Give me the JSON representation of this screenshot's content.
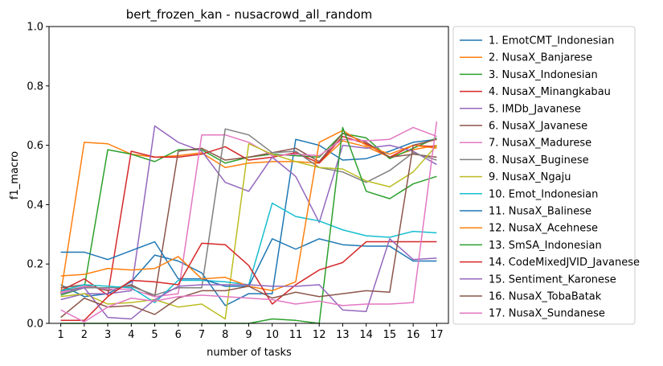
{
  "chart_data": {
    "type": "line",
    "title": "bert_frozen_kan - nusacrowd_all_random",
    "xlabel": "number of tasks",
    "ylabel": "f1_macro",
    "xlim": [
      0.5,
      17.5
    ],
    "ylim": [
      0,
      1
    ],
    "x": [
      1,
      2,
      3,
      4,
      5,
      6,
      7,
      8,
      9,
      10,
      11,
      12,
      13,
      14,
      15,
      16,
      17
    ],
    "x_ticks": [
      "1",
      "2",
      "3",
      "4",
      "5",
      "6",
      "7",
      "8",
      "9",
      "10",
      "11",
      "12",
      "13",
      "14",
      "15",
      "16",
      "17"
    ],
    "y_ticks": [
      "0.0",
      "0.2",
      "0.4",
      "0.6",
      "0.8",
      "1.0"
    ],
    "grid": false,
    "legend_position": "outside-right",
    "series": [
      {
        "name": "1. EmotCMT_Indonesian",
        "color": "#1f77b4",
        "values": [
          0.13,
          0.09,
          0.1,
          0.14,
          0.23,
          0.21,
          0.17,
          0.06,
          0.1,
          0.1,
          0.62,
          0.6,
          0.55,
          0.555,
          0.58,
          0.61,
          0.62
        ]
      },
      {
        "name": "2. NusaX_Banjarese",
        "color": "#ff7f0e",
        "values": [
          0.1,
          0.61,
          0.605,
          0.57,
          0.56,
          0.565,
          0.575,
          0.525,
          0.54,
          0.545,
          0.545,
          0.54,
          0.615,
          0.595,
          0.56,
          0.585,
          0.6
        ]
      },
      {
        "name": "3. NusaX_Indonesian",
        "color": "#2ca02c",
        "values": [
          0.095,
          0.12,
          0.585,
          0.57,
          0.545,
          0.585,
          0.585,
          0.54,
          0.56,
          0.57,
          0.565,
          0.56,
          0.64,
          0.625,
          0.555,
          0.59,
          0.625
        ]
      },
      {
        "name": "4. NusaX_Minangkabau",
        "color": "#d62728",
        "values": [
          0.11,
          0.15,
          0.095,
          0.58,
          0.56,
          0.56,
          0.57,
          0.595,
          0.55,
          0.56,
          0.575,
          0.54,
          0.63,
          0.605,
          0.56,
          0.6,
          0.595
        ]
      },
      {
        "name": "5. IMDb_Javanese",
        "color": "#9467bd",
        "values": [
          0.08,
          0.1,
          0.1,
          0.11,
          0.665,
          0.61,
          0.58,
          0.475,
          0.445,
          0.56,
          0.495,
          0.34,
          0.6,
          0.59,
          0.6,
          0.58,
          0.535
        ]
      },
      {
        "name": "6. NusaX_Javanese",
        "color": "#8c564b",
        "values": [
          0.12,
          0.13,
          0.11,
          0.13,
          0.09,
          0.58,
          0.59,
          0.55,
          0.56,
          0.575,
          0.59,
          0.545,
          0.64,
          0.61,
          0.56,
          0.57,
          0.56
        ]
      },
      {
        "name": "7. NusaX_Madurese",
        "color": "#e377c2",
        "values": [
          0.105,
          0.125,
          0.115,
          0.115,
          0.09,
          0.1,
          0.635,
          0.635,
          0.61,
          0.565,
          0.57,
          0.565,
          0.62,
          0.615,
          0.62,
          0.66,
          0.63
        ]
      },
      {
        "name": "8. NusaX_Buginese",
        "color": "#7f7f7f",
        "values": [
          0.11,
          0.12,
          0.12,
          0.125,
          0.095,
          0.12,
          0.12,
          0.655,
          0.635,
          0.575,
          0.58,
          0.525,
          0.51,
          0.475,
          0.515,
          0.575,
          0.55
        ]
      },
      {
        "name": "9. NusaX_Ngaju",
        "color": "#bcbd22",
        "values": [
          0.09,
          0.1,
          0.065,
          0.07,
          0.08,
          0.055,
          0.065,
          0.015,
          0.605,
          0.57,
          0.545,
          0.525,
          0.52,
          0.48,
          0.46,
          0.51,
          0.6
        ]
      },
      {
        "name": "10. Emot_Indonesian",
        "color": "#17becf",
        "values": [
          0.11,
          0.13,
          0.125,
          0.12,
          0.07,
          0.145,
          0.145,
          0.14,
          0.13,
          0.405,
          0.36,
          0.345,
          0.315,
          0.295,
          0.29,
          0.31,
          0.305
        ]
      },
      {
        "name": "11. NusaX_Balinese",
        "color": "#1f77b4",
        "values": [
          0.24,
          0.24,
          0.215,
          0.245,
          0.275,
          0.15,
          0.15,
          0.125,
          0.125,
          0.285,
          0.25,
          0.285,
          0.265,
          0.26,
          0.26,
          0.21,
          0.21
        ]
      },
      {
        "name": "12. NusaX_Acehnese",
        "color": "#ff7f0e",
        "values": [
          0.16,
          0.165,
          0.185,
          0.18,
          0.185,
          0.225,
          0.15,
          0.155,
          0.125,
          0.11,
          0.14,
          0.61,
          0.65,
          0.6,
          0.57,
          0.6,
          0.59
        ]
      },
      {
        "name": "13. SmSA_Indonesian",
        "color": "#2ca02c",
        "values": [
          0.0,
          0.0,
          0.0,
          0.0,
          0.0,
          0.0,
          0.0,
          0.0,
          0.0,
          0.015,
          0.01,
          0.0,
          0.66,
          0.445,
          0.42,
          0.47,
          0.495
        ]
      },
      {
        "name": "14. CodeMixedJVID_Javanese",
        "color": "#d62728",
        "values": [
          0.01,
          0.01,
          0.09,
          0.145,
          0.14,
          0.13,
          0.27,
          0.265,
          0.195,
          0.065,
          0.13,
          0.18,
          0.205,
          0.275,
          0.275,
          0.275,
          0.275
        ]
      },
      {
        "name": "15. Sentiment_Karonese",
        "color": "#9467bd",
        "values": [
          0.1,
          0.12,
          0.02,
          0.015,
          0.08,
          0.125,
          0.13,
          0.13,
          0.13,
          0.125,
          0.125,
          0.13,
          0.045,
          0.04,
          0.285,
          0.215,
          0.22
        ]
      },
      {
        "name": "16. NusaX_TobaBatak",
        "color": "#8c564b",
        "values": [
          0.02,
          0.085,
          0.055,
          0.06,
          0.03,
          0.085,
          0.11,
          0.11,
          0.125,
          0.085,
          0.105,
          0.09,
          0.1,
          0.11,
          0.105,
          0.6,
          0.62
        ]
      },
      {
        "name": "17. NusaX_Sundanese",
        "color": "#e377c2",
        "values": [
          0.045,
          0.005,
          0.055,
          0.085,
          0.075,
          0.09,
          0.095,
          0.09,
          0.085,
          0.08,
          0.065,
          0.075,
          0.06,
          0.065,
          0.065,
          0.07,
          0.68
        ]
      }
    ]
  }
}
